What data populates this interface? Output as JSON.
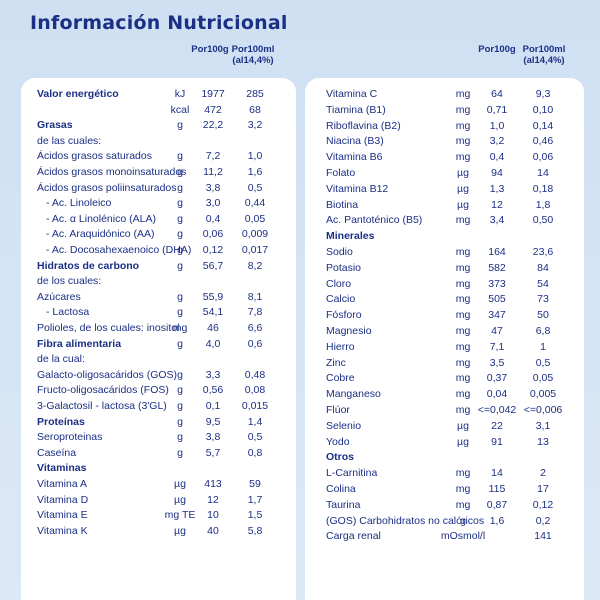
{
  "title": "Información Nutricional",
  "headers": {
    "per100g": "Por100g",
    "per100ml_line1": "Por100ml",
    "per100ml_line2": "(al14,4%)"
  },
  "left": [
    {
      "name": "Valor energético",
      "bold": true,
      "unit": "kJ",
      "v1": "1977",
      "v2": "285"
    },
    {
      "name": "",
      "unit": "kcal",
      "v1": "472",
      "v2": "68"
    },
    {
      "name": "Grasas",
      "bold": true,
      "unit": "g",
      "v1": "22,2",
      "v2": "3,2"
    },
    {
      "name": "de las cuales:"
    },
    {
      "name": "Ácidos grasos saturados",
      "unit": "g",
      "v1": "7,2",
      "v2": "1,0"
    },
    {
      "name": "Ácidos grasos monoinsaturados",
      "unit": "g",
      "v1": "11,2",
      "v2": "1,6"
    },
    {
      "name": "Ácidos grasos poliinsaturados",
      "unit": "g",
      "v1": "3,8",
      "v2": "0,5"
    },
    {
      "name": "- Ac. Linoleico",
      "indent": true,
      "unit": "g",
      "v1": "3,0",
      "v2": "0,44"
    },
    {
      "name": "- Ac. α Linolénico (ALA)",
      "indent": true,
      "unit": "g",
      "v1": "0,4",
      "v2": "0,05"
    },
    {
      "name": "- Ac. Araquidónico (AA)",
      "indent": true,
      "unit": "g",
      "v1": "0,06",
      "v2": "0,009"
    },
    {
      "name": "- Ac. Docosahexaenoico (DHA)",
      "indent": true,
      "unit": "g",
      "v1": "0,12",
      "v2": "0,017"
    },
    {
      "name": "Hidratos de carbono",
      "bold": true,
      "unit": "g",
      "v1": "56,7",
      "v2": "8,2"
    },
    {
      "name": "de los cuales:"
    },
    {
      "name": "Azúcares",
      "unit": "g",
      "v1": "55,9",
      "v2": "8,1"
    },
    {
      "name": "- Lactosa",
      "indent": true,
      "unit": "g",
      "v1": "54,1",
      "v2": "7,8"
    },
    {
      "name": "Polioles, de los cuales: inositol",
      "unit": "mg",
      "v1": "46",
      "v2": "6,6"
    },
    {
      "name": "Fibra alimentaria",
      "bold": true,
      "unit": "g",
      "v1": "4,0",
      "v2": "0,6"
    },
    {
      "name": "de la cual:"
    },
    {
      "name": "Galacto-oligosacáridos (GOS)",
      "unit": "g",
      "v1": "3,3",
      "v2": "0,48"
    },
    {
      "name": "Fructo-oligosacáridos (FOS)",
      "unit": "g",
      "v1": "0,56",
      "v2": "0,08"
    },
    {
      "name": "3-Galactosil - lactosa (3'GL)",
      "unit": "g",
      "v1": "0,1",
      "v2": "0,015"
    },
    {
      "name": "Proteínas",
      "bold": true,
      "unit": "g",
      "v1": "9,5",
      "v2": "1,4"
    },
    {
      "name": "Seroproteinas",
      "unit": "g",
      "v1": "3,8",
      "v2": "0,5"
    },
    {
      "name": "Caseína",
      "unit": "g",
      "v1": "5,7",
      "v2": "0,8"
    },
    {
      "name": "Vitaminas",
      "bold": true
    },
    {
      "name": "Vitamina A",
      "unit": "µg",
      "v1": "413",
      "v2": "59"
    },
    {
      "name": "Vitamina D",
      "unit": "µg",
      "v1": "12",
      "v2": "1,7"
    },
    {
      "name": "Vitamina E",
      "unit": "mg TE",
      "v1": "10",
      "v2": "1,5"
    },
    {
      "name": "Vitamina K",
      "unit": "µg",
      "v1": "40",
      "v2": "5,8"
    }
  ],
  "right": [
    {
      "name": "Vitamina C",
      "unit": "mg",
      "v1": "64",
      "v2": "9,3"
    },
    {
      "name": "Tiamina (B1)",
      "unit": "mg",
      "v1": "0,71",
      "v2": "0,10"
    },
    {
      "name": "Riboflavina (B2)",
      "unit": "mg",
      "v1": "1,0",
      "v2": "0,14"
    },
    {
      "name": "Niacina (B3)",
      "unit": "mg",
      "v1": "3,2",
      "v2": "0,46"
    },
    {
      "name": "Vitamina B6",
      "unit": "mg",
      "v1": "0,4",
      "v2": "0,06"
    },
    {
      "name": "Folato",
      "unit": "µg",
      "v1": "94",
      "v2": "14"
    },
    {
      "name": "Vitamina B12",
      "unit": "µg",
      "v1": "1,3",
      "v2": "0,18"
    },
    {
      "name": "Biotina",
      "unit": "µg",
      "v1": "12",
      "v2": "1,8"
    },
    {
      "name": "Ac. Pantoténico (B5)",
      "unit": "mg",
      "v1": "3,4",
      "v2": "0,50"
    },
    {
      "name": "Minerales",
      "bold": true
    },
    {
      "name": "Sodio",
      "unit": "mg",
      "v1": "164",
      "v2": "23,6"
    },
    {
      "name": "Potasio",
      "unit": "mg",
      "v1": "582",
      "v2": "84"
    },
    {
      "name": "Cloro",
      "unit": "mg",
      "v1": "373",
      "v2": "54"
    },
    {
      "name": "Calcio",
      "unit": "mg",
      "v1": "505",
      "v2": "73"
    },
    {
      "name": "Fósforo",
      "unit": "mg",
      "v1": "347",
      "v2": "50"
    },
    {
      "name": "Magnesio",
      "unit": "mg",
      "v1": "47",
      "v2": "6,8"
    },
    {
      "name": "Hierro",
      "unit": "mg",
      "v1": "7,1",
      "v2": "1"
    },
    {
      "name": "Zinc",
      "unit": "mg",
      "v1": "3,5",
      "v2": "0,5"
    },
    {
      "name": "Cobre",
      "unit": "mg",
      "v1": "0,37",
      "v2": "0,05"
    },
    {
      "name": "Manganeso",
      "unit": "mg",
      "v1": "0,04",
      "v2": "0,005"
    },
    {
      "name": "Flúor",
      "unit": "mg",
      "v1": "<=0,042",
      "v2": "<=0,006"
    },
    {
      "name": "Selenio",
      "unit": "µg",
      "v1": "22",
      "v2": "3,1"
    },
    {
      "name": "Yodo",
      "unit": "µg",
      "v1": "91",
      "v2": "13"
    },
    {
      "name": "Otros",
      "bold": true
    },
    {
      "name": "L-Carnitina",
      "unit": "mg",
      "v1": "14",
      "v2": "2"
    },
    {
      "name": "Colina",
      "unit": "mg",
      "v1": "115",
      "v2": "17"
    },
    {
      "name": "Taurina",
      "unit": "mg",
      "v1": "0,87",
      "v2": "0,12"
    },
    {
      "name": "(GOS) Carbohidratos no calóricos",
      "unit": "g",
      "v1": "1,6",
      "v2": "0,2"
    },
    {
      "name": "Carga renal",
      "unit": "mOsmol/l",
      "v1": "",
      "v2": "141"
    }
  ]
}
